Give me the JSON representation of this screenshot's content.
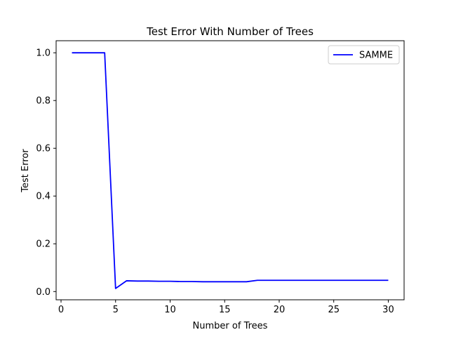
{
  "chart_data": {
    "type": "line",
    "title": "Test Error With Number of Trees",
    "xlabel": "Number of Trees",
    "ylabel": "Test Error",
    "xlim": [
      -0.45,
      31.45
    ],
    "ylim": [
      -0.0345,
      1.0505
    ],
    "xticks": [
      0,
      5,
      10,
      15,
      20,
      25,
      30
    ],
    "yticks": [
      0.0,
      0.2,
      0.4,
      0.6,
      0.8,
      1.0
    ],
    "xtick_labels": [
      "0",
      "5",
      "10",
      "15",
      "20",
      "25",
      "30"
    ],
    "ytick_labels": [
      "0.0",
      "0.2",
      "0.4",
      "0.6",
      "0.8",
      "1.0"
    ],
    "grid": false,
    "legend_position": "top-right",
    "x": [
      1,
      2,
      3,
      4,
      5,
      6,
      7,
      8,
      9,
      10,
      11,
      12,
      13,
      14,
      15,
      16,
      17,
      18,
      19,
      20,
      21,
      22,
      23,
      24,
      25,
      26,
      27,
      28,
      29,
      30
    ],
    "series": [
      {
        "name": "SAMME",
        "color": "#0000ff",
        "values": [
          1.0,
          1.0,
          1.0,
          1.0,
          0.013,
          0.045,
          0.044,
          0.044,
          0.043,
          0.043,
          0.042,
          0.042,
          0.041,
          0.041,
          0.041,
          0.041,
          0.041,
          0.047,
          0.047,
          0.047,
          0.047,
          0.047,
          0.047,
          0.047,
          0.047,
          0.047,
          0.047,
          0.047,
          0.047,
          0.047
        ]
      }
    ]
  }
}
